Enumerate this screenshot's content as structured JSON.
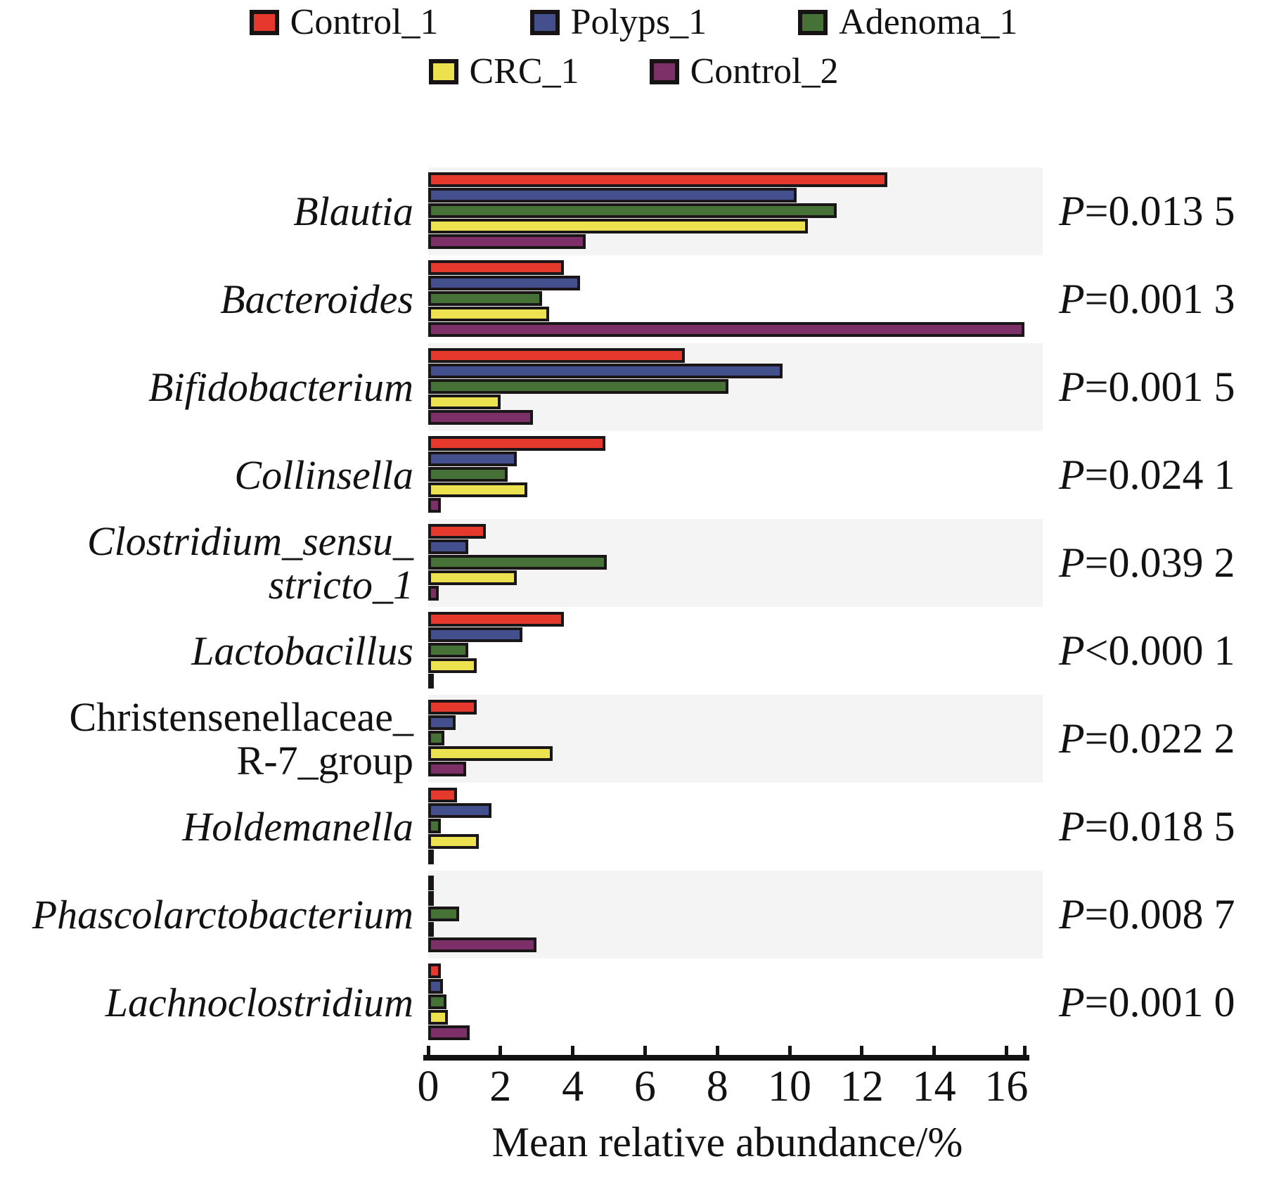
{
  "legend": {
    "rows": [
      [
        "Control_1",
        "Polyps_1",
        "Adenoma_1"
      ],
      [
        "CRC_1",
        "Control_2"
      ]
    ]
  },
  "chart_data": {
    "type": "bar",
    "orientation": "horizontal",
    "title": "",
    "xlabel": "Mean relative abundance/%",
    "ylabel": "",
    "xlim": [
      0,
      17
    ],
    "xticks": [
      0,
      2,
      4,
      6,
      8,
      10,
      12,
      14,
      16
    ],
    "grid": false,
    "legend_position": "top",
    "band_color": "#f5f4f5",
    "bar_border_color": "#1a1517",
    "series": [
      {
        "name": "Control_1",
        "color": "#e6392e"
      },
      {
        "name": "Polyps_1",
        "color": "#44508e"
      },
      {
        "name": "Adenoma_1",
        "color": "#477237"
      },
      {
        "name": "CRC_1",
        "color": "#ece24f"
      },
      {
        "name": "Control_2",
        "color": "#7d2f68"
      }
    ],
    "groups": [
      {
        "label": "Blautia",
        "label_lines": [
          "Blautia"
        ],
        "italic": true,
        "shaded": true,
        "p_value": "P=0.013 5",
        "values": [
          12.7,
          10.2,
          11.3,
          10.5,
          4.35
        ]
      },
      {
        "label": "Bacteroides",
        "label_lines": [
          "Bacteroides"
        ],
        "italic": true,
        "shaded": false,
        "p_value": "P=0.001 3",
        "values": [
          3.75,
          4.2,
          3.15,
          3.35,
          16.5
        ]
      },
      {
        "label": "Bifidobacterium",
        "label_lines": [
          "Bifidobacterium"
        ],
        "italic": true,
        "shaded": true,
        "p_value": "P=0.001 5",
        "values": [
          7.1,
          9.8,
          8.3,
          2.0,
          2.9
        ]
      },
      {
        "label": "Collinsella",
        "label_lines": [
          "Collinsella"
        ],
        "italic": true,
        "shaded": false,
        "p_value": "P=0.024 1",
        "values": [
          4.9,
          2.45,
          2.2,
          2.75,
          0.35
        ]
      },
      {
        "label": "Clostridium_sensu_stricto_1",
        "label_lines": [
          "Clostridium_sensu_",
          "stricto_1"
        ],
        "italic": true,
        "shaded": true,
        "p_value": "P=0.039 2",
        "values": [
          1.6,
          1.1,
          4.95,
          2.45,
          0.3
        ]
      },
      {
        "label": "Lactobacillus",
        "label_lines": [
          "Lactobacillus"
        ],
        "italic": true,
        "shaded": false,
        "p_value": "P<0.000 1",
        "values": [
          3.75,
          2.6,
          1.1,
          1.35,
          0.05
        ]
      },
      {
        "label": "Christensenellaceae_R-7_group",
        "label_lines": [
          "Christensenellaceae_",
          "R-7_group"
        ],
        "italic": false,
        "shaded": true,
        "p_value": "P=0.022 2",
        "values": [
          1.35,
          0.75,
          0.45,
          3.45,
          1.05
        ]
      },
      {
        "label": "Holdemanella",
        "label_lines": [
          "Holdemanella"
        ],
        "italic": true,
        "shaded": false,
        "p_value": "P=0.018 5",
        "values": [
          0.8,
          1.75,
          0.35,
          1.4,
          0.05
        ]
      },
      {
        "label": "Phascolarctobacterium",
        "label_lines": [
          "Phascolarctobacterium"
        ],
        "italic": true,
        "shaded": true,
        "p_value": "P=0.008 7",
        "values": [
          0.05,
          0.1,
          0.85,
          0.05,
          3.0
        ]
      },
      {
        "label": "Lachnoclostridium",
        "label_lines": [
          "Lachnoclostridium"
        ],
        "italic": true,
        "shaded": false,
        "p_value": "P=0.001 0",
        "values": [
          0.35,
          0.4,
          0.5,
          0.55,
          1.15
        ]
      }
    ]
  }
}
